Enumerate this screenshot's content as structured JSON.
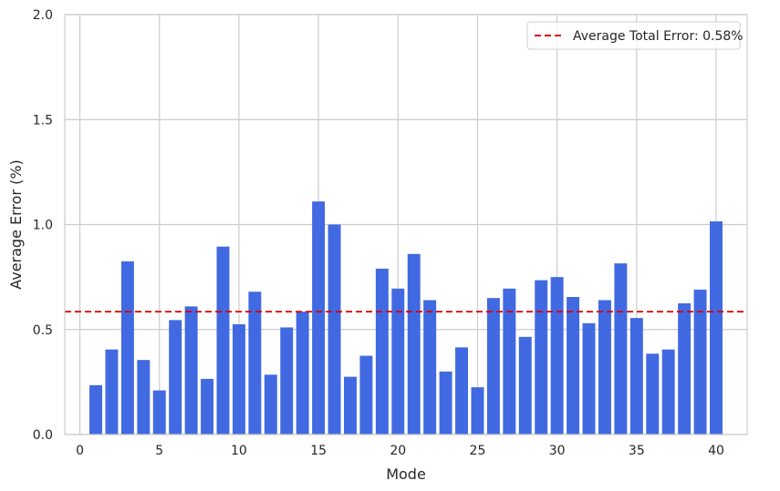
{
  "chart_data": {
    "type": "bar",
    "xlabel": "Mode",
    "ylabel": "Average Error (%)",
    "xlim": [
      -0.95,
      41.95
    ],
    "ylim": [
      0,
      2
    ],
    "x_ticks": [
      0,
      5,
      10,
      15,
      20,
      25,
      30,
      35,
      40
    ],
    "x_tick_labels": [
      "0",
      "5",
      "10",
      "15",
      "20",
      "25",
      "30",
      "35",
      "40"
    ],
    "y_ticks": [
      0,
      0.5,
      1.0,
      1.5,
      2.0
    ],
    "y_tick_labels": [
      "0.0",
      "0.5",
      "1.0",
      "1.5",
      "2.0"
    ],
    "grid": true,
    "bar_color": "#4169e1",
    "x": [
      1,
      2,
      3,
      4,
      5,
      6,
      7,
      8,
      9,
      10,
      11,
      12,
      13,
      14,
      15,
      16,
      17,
      18,
      19,
      20,
      21,
      22,
      23,
      24,
      25,
      26,
      27,
      28,
      29,
      30,
      31,
      32,
      33,
      34,
      35,
      36,
      37,
      38,
      39,
      40
    ],
    "values": [
      0.235,
      0.405,
      0.825,
      0.355,
      0.21,
      0.545,
      0.61,
      0.265,
      0.895,
      0.525,
      0.68,
      0.285,
      0.51,
      0.585,
      1.11,
      1.0,
      0.275,
      0.375,
      0.79,
      0.695,
      0.86,
      0.64,
      0.3,
      0.415,
      0.225,
      0.65,
      0.695,
      0.465,
      0.735,
      0.75,
      0.655,
      0.53,
      0.64,
      0.815,
      0.555,
      0.385,
      0.405,
      0.625,
      0.69,
      1.015
    ],
    "reference_line": {
      "value": 0.585,
      "color": "#dd0000",
      "style": "dashed",
      "label": "Average Total Error: 0.58%"
    },
    "legend_position": "top-right"
  }
}
